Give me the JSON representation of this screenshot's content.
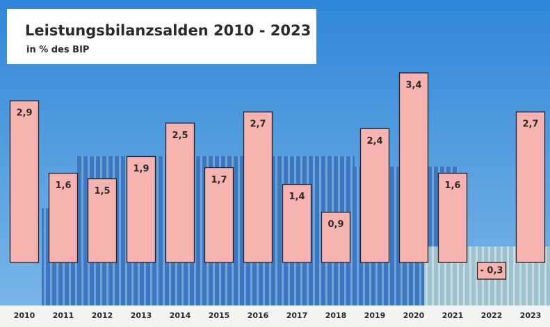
{
  "chart_data": {
    "type": "bar",
    "title": "Leistungsbilanzsalden 2010 - 2023",
    "subtitle": "in % des BIP",
    "categories": [
      "2010",
      "2011",
      "2012",
      "2013",
      "2014",
      "2015",
      "2016",
      "2017",
      "2018",
      "2019",
      "2020",
      "2021",
      "2022",
      "2023"
    ],
    "values": [
      2.9,
      1.6,
      1.5,
      1.9,
      2.5,
      1.7,
      2.7,
      1.4,
      0.9,
      2.4,
      3.4,
      1.6,
      -0.3,
      2.7
    ],
    "value_labels": [
      "2,9",
      "1,6",
      "1,5",
      "1,9",
      "2,5",
      "1,7",
      "2,7",
      "1,4",
      "0,9",
      "2,4",
      "3,4",
      "1,6",
      "- 0,3",
      "2,7"
    ],
    "color": "#f7b3b0"
  }
}
